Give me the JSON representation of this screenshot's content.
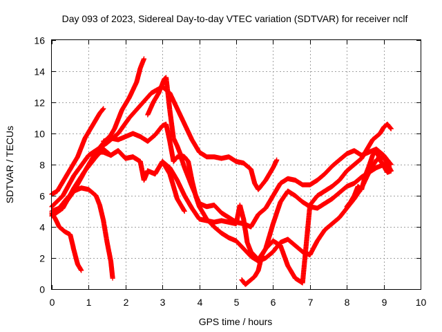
{
  "chart_data": {
    "type": "scatter",
    "title": "Day 093 of 2023, Sidereal Day-to-day VTEC variation (SDTVAR) for receiver nclf",
    "xlabel": "GPS time / hours",
    "ylabel": "SDTVAR / TECUs",
    "xlim": [
      0,
      10
    ],
    "ylim": [
      0,
      16
    ],
    "xticks": [
      "0",
      "1",
      "2",
      "3",
      "4",
      "5",
      "6",
      "7",
      "8",
      "9",
      "10"
    ],
    "yticks": [
      "0",
      "2",
      "4",
      "6",
      "8",
      "10",
      "12",
      "14",
      "16"
    ],
    "grid": true,
    "marker": "plus",
    "color": "#ff0000",
    "series": [
      {
        "x": [
          0.0,
          0.15,
          0.3,
          0.5,
          0.7,
          0.9,
          1.1,
          1.3,
          1.4
        ],
        "y": [
          6.1,
          6.3,
          6.9,
          7.7,
          8.5,
          9.7,
          10.5,
          11.3,
          11.6
        ]
      },
      {
        "x": [
          0.0,
          0.1,
          0.2,
          0.35,
          0.5,
          0.6,
          0.7,
          0.8
        ],
        "y": [
          4.9,
          4.5,
          4.0,
          3.7,
          3.5,
          2.5,
          1.6,
          1.2
        ]
      },
      {
        "x": [
          0.0,
          0.2,
          0.4,
          0.6,
          0.8,
          1.0,
          1.2,
          1.3,
          1.4,
          1.5,
          1.6,
          1.65
        ],
        "y": [
          5.0,
          5.2,
          5.8,
          6.3,
          6.5,
          6.4,
          6.0,
          5.4,
          4.4,
          3.0,
          1.8,
          0.7
        ]
      },
      {
        "x": [
          0.0,
          0.3,
          0.6,
          0.9,
          1.2,
          1.4,
          1.6,
          1.7,
          1.9,
          2.1,
          2.3,
          2.4,
          2.5
        ],
        "y": [
          4.8,
          5.3,
          6.3,
          7.6,
          8.8,
          9.4,
          9.9,
          10.3,
          11.5,
          12.3,
          13.3,
          14.2,
          14.8
        ]
      },
      {
        "x": [
          0.0,
          0.3,
          0.6,
          0.9,
          1.2,
          1.4,
          1.6,
          1.8,
          2.0,
          2.2,
          2.4,
          2.5,
          2.6,
          2.8,
          3.0,
          3.2,
          3.4,
          3.6
        ],
        "y": [
          4.7,
          5.2,
          6.5,
          7.6,
          8.5,
          9.0,
          8.6,
          8.9,
          8.4,
          8.5,
          8.2,
          7.0,
          7.6,
          7.4,
          8.2,
          7.4,
          5.8,
          5.0
        ]
      },
      {
        "x": [
          0.0,
          0.3,
          0.6,
          1.0,
          1.5,
          1.8,
          2.1,
          2.4,
          2.7,
          3.0,
          3.2,
          3.4,
          3.6,
          3.8,
          4.0,
          4.2,
          4.4,
          4.6,
          4.8,
          5.0,
          5.2,
          5.4,
          5.5,
          5.6,
          5.8,
          6.0,
          6.1
        ],
        "y": [
          5.3,
          6.0,
          7.3,
          8.6,
          9.4,
          10.0,
          11.0,
          11.8,
          12.6,
          13.0,
          12.6,
          11.6,
          10.6,
          9.6,
          8.8,
          8.5,
          8.5,
          8.4,
          8.5,
          8.2,
          8.1,
          7.7,
          6.8,
          6.4,
          7.0,
          7.8,
          8.3
        ]
      },
      {
        "x": [
          2.6,
          2.75,
          2.9,
          3.0,
          3.05,
          3.1,
          3.2,
          3.3,
          3.4,
          3.5,
          3.6,
          3.7,
          3.8,
          3.9,
          4.0,
          4.2,
          4.4,
          4.6,
          4.8,
          5.0,
          5.2,
          5.4,
          5.6,
          5.8,
          6.0,
          6.2,
          6.4,
          6.6,
          6.8,
          7.0,
          7.2,
          7.4,
          7.6,
          7.8,
          8.0,
          8.2,
          8.4,
          8.6,
          8.8,
          9.0,
          9.2
        ],
        "y": [
          11.2,
          12.0,
          12.6,
          13.2,
          13.5,
          13.6,
          11.5,
          9.7,
          9.2,
          8.6,
          8.5,
          8.2,
          7.0,
          6.0,
          5.3,
          4.5,
          4.0,
          3.6,
          3.3,
          3.1,
          2.6,
          2.1,
          1.8,
          2.0,
          2.4,
          3.0,
          3.2,
          2.8,
          2.4,
          2.2,
          3.1,
          3.8,
          4.2,
          4.6,
          5.2,
          5.8,
          6.5,
          7.5,
          8.3,
          8.5,
          7.6
        ]
      },
      {
        "x": [
          1.4,
          1.6,
          1.8,
          2.0,
          2.2,
          2.4,
          2.6,
          2.8,
          3.0,
          3.1,
          3.2,
          3.3,
          3.4,
          3.5,
          3.6,
          3.8,
          4.0,
          4.2,
          4.4,
          4.6,
          4.8,
          5.0,
          5.2,
          5.4,
          5.6,
          5.8,
          6.0,
          6.2,
          6.4,
          6.6,
          6.8,
          7.0,
          7.2,
          7.4,
          7.6,
          7.8,
          8.0,
          8.2,
          8.4,
          8.6,
          8.8,
          9.0,
          9.2
        ],
        "y": [
          9.5,
          9.7,
          9.6,
          9.8,
          10.0,
          9.8,
          9.5,
          9.9,
          10.5,
          10.6,
          9.5,
          8.2,
          8.5,
          8.5,
          7.8,
          6.6,
          5.5,
          5.3,
          5.4,
          4.9,
          4.6,
          4.3,
          4.2,
          4.0,
          4.8,
          5.2,
          6.0,
          6.8,
          7.1,
          7.0,
          6.7,
          6.7,
          7.0,
          7.4,
          7.9,
          8.3,
          8.7,
          8.9,
          8.6,
          8.8,
          9.0,
          8.6,
          8.0
        ]
      },
      {
        "x": [
          1.2,
          1.4,
          1.6,
          1.8,
          2.0,
          2.2,
          2.4,
          2.5,
          2.6,
          2.8,
          3.0,
          3.1,
          3.2,
          3.3,
          3.4,
          3.5,
          3.6,
          3.8,
          4.0,
          4.2,
          4.4,
          4.6,
          4.8,
          5.0,
          5.1,
          5.2,
          5.3,
          5.4,
          5.6,
          5.8,
          6.0,
          6.2,
          6.4,
          6.6,
          6.8,
          7.0,
          7.2,
          7.4,
          7.6,
          7.8,
          8.0,
          8.2,
          8.4,
          8.6,
          8.8,
          9.0,
          9.2
        ],
        "y": [
          8.8,
          8.8,
          8.6,
          8.9,
          8.4,
          8.5,
          8.2,
          7.0,
          7.6,
          7.4,
          8.2,
          8.0,
          7.8,
          7.4,
          7.0,
          6.5,
          6.0,
          5.2,
          4.5,
          4.4,
          4.3,
          4.4,
          4.3,
          4.2,
          5.4,
          4.5,
          3.0,
          2.4,
          1.9,
          2.6,
          4.2,
          5.6,
          6.3,
          6.0,
          5.6,
          5.3,
          5.2,
          5.5,
          5.8,
          6.2,
          6.6,
          6.8,
          7.2,
          7.5,
          7.8,
          8.0,
          7.6
        ]
      },
      {
        "x": [
          5.15,
          5.25,
          5.35,
          5.5,
          5.6,
          5.7,
          5.8,
          6.0,
          6.2,
          6.4,
          6.6,
          6.8,
          7.0,
          7.2,
          7.4,
          7.6,
          7.8,
          8.0,
          8.2,
          8.4,
          8.5,
          8.6,
          8.7,
          8.8,
          8.9,
          9.0,
          9.1,
          9.2
        ],
        "y": [
          0.6,
          0.3,
          0.5,
          0.8,
          1.2,
          2.2,
          2.6,
          3.1,
          2.8,
          1.5,
          0.7,
          0.4,
          5.4,
          6.0,
          6.3,
          6.6,
          7.0,
          7.6,
          8.0,
          8.4,
          8.8,
          9.2,
          9.6,
          9.8,
          10.0,
          10.4,
          10.6,
          10.3
        ]
      },
      {
        "x": [
          8.0,
          8.1,
          8.2,
          8.3,
          8.4,
          8.5,
          8.6,
          8.7,
          8.8,
          8.9,
          9.0,
          9.1,
          9.2
        ],
        "y": [
          5.3,
          5.6,
          6.0,
          6.6,
          6.4,
          7.3,
          7.9,
          8.6,
          8.9,
          8.3,
          7.9,
          7.5,
          7.6
        ]
      }
    ]
  }
}
